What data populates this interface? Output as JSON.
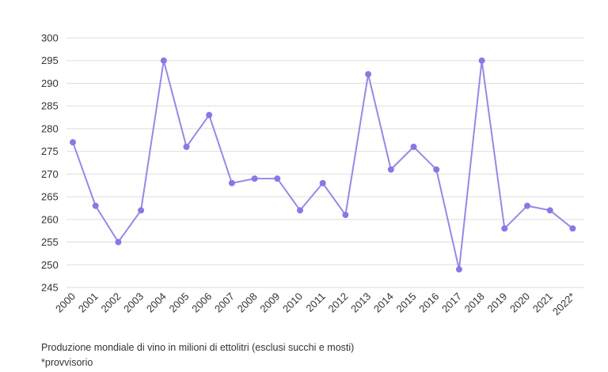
{
  "chart_data": {
    "type": "line",
    "categories": [
      "2000",
      "2001",
      "2002",
      "2003",
      "2004",
      "2005",
      "2006",
      "2007",
      "2008",
      "2009",
      "2010",
      "2011",
      "2012",
      "2013",
      "2014",
      "2015",
      "2016",
      "2017",
      "2018",
      "2019",
      "2020",
      "2021",
      "2022*"
    ],
    "series": [
      {
        "values": [
          277,
          263,
          255,
          262,
          295,
          276,
          283,
          268,
          269,
          269,
          262,
          268,
          261,
          292,
          271,
          276,
          271,
          249,
          295,
          258,
          263,
          262,
          258
        ]
      }
    ],
    "yticks": [
      300,
      295,
      290,
      285,
      280,
      275,
      270,
      265,
      260,
      255,
      250,
      245
    ],
    "ylim": [
      243.5,
      300
    ],
    "grid": true,
    "line_color": "#9b86e8",
    "marker_color": "#8e75e4"
  },
  "captions": {
    "source": "Produzione mondiale di vino in milioni di ettolitri (esclusi succhi e mosti)",
    "note": "*provvisorio"
  }
}
